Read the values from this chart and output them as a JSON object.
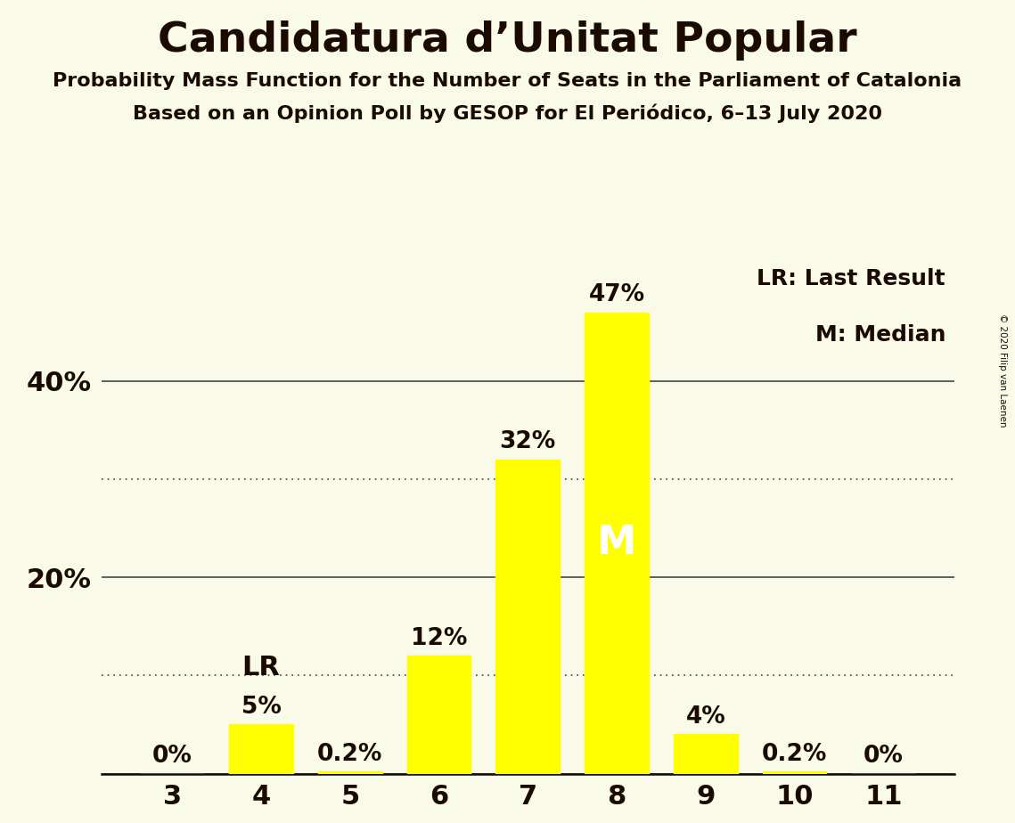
{
  "title": "Candidatura d’Unitat Popular",
  "subtitle1": "Probability Mass Function for the Number of Seats in the Parliament of Catalonia",
  "subtitle2": "Based on an Opinion Poll by GESOP for El Periódico, 6–13 July 2020",
  "copyright": "© 2020 Filip van Laenen",
  "categories": [
    3,
    4,
    5,
    6,
    7,
    8,
    9,
    10,
    11
  ],
  "values": [
    0.0,
    5.0,
    0.2,
    12.0,
    32.0,
    47.0,
    4.0,
    0.2,
    0.0
  ],
  "labels": [
    "0%",
    "5%",
    "0.2%",
    "12%",
    "32%",
    "47%",
    "4%",
    "0.2%",
    "0%"
  ],
  "bar_color": "#FFFF00",
  "background_color": "#FAFAE8",
  "text_color": "#1a0a00",
  "grid_color": "#444444",
  "solid_yticks": [
    0,
    20,
    40
  ],
  "dotted_yticks": [
    10,
    30
  ],
  "ylim": [
    0,
    52
  ],
  "lr_bar_index": 1,
  "median_bar_index": 5,
  "lr_label": "LR",
  "median_label": "M",
  "legend_lr": "LR: Last Result",
  "legend_m": "M: Median",
  "title_fontsize": 34,
  "subtitle_fontsize": 16,
  "label_fontsize": 19,
  "tick_fontsize": 22,
  "annotation_fontsize": 22,
  "legend_fontsize": 18,
  "bar_width": 0.72
}
